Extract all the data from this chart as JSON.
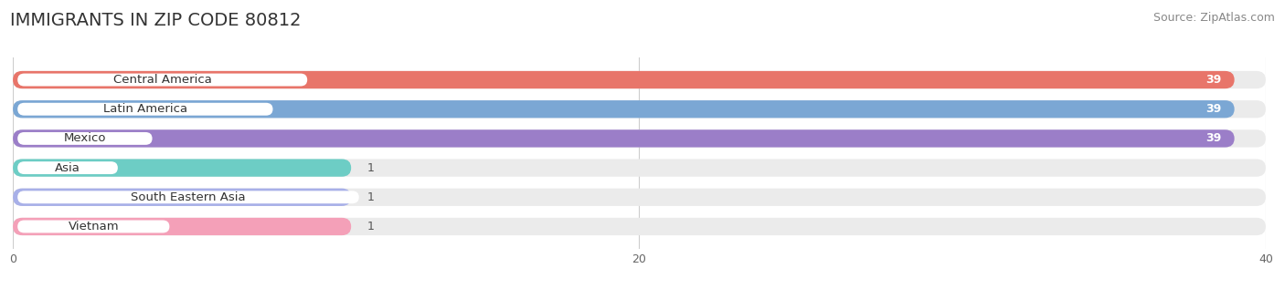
{
  "title": "IMMIGRANTS IN ZIP CODE 80812",
  "source": "Source: ZipAtlas.com",
  "categories": [
    "Central America",
    "Latin America",
    "Mexico",
    "Asia",
    "South Eastern Asia",
    "Vietnam"
  ],
  "values": [
    39,
    39,
    39,
    1,
    1,
    1
  ],
  "bar_colors": [
    "#E8756A",
    "#7BA7D4",
    "#9B7EC8",
    "#6DCDC5",
    "#A8B0E8",
    "#F4A0B8"
  ],
  "xlim": [
    0,
    40
  ],
  "xticks": [
    0,
    20,
    40
  ],
  "background_color": "#ffffff",
  "bar_bg_color": "#ebebeb",
  "title_fontsize": 14,
  "source_fontsize": 9,
  "label_fontsize": 9.5,
  "value_fontsize": 9
}
